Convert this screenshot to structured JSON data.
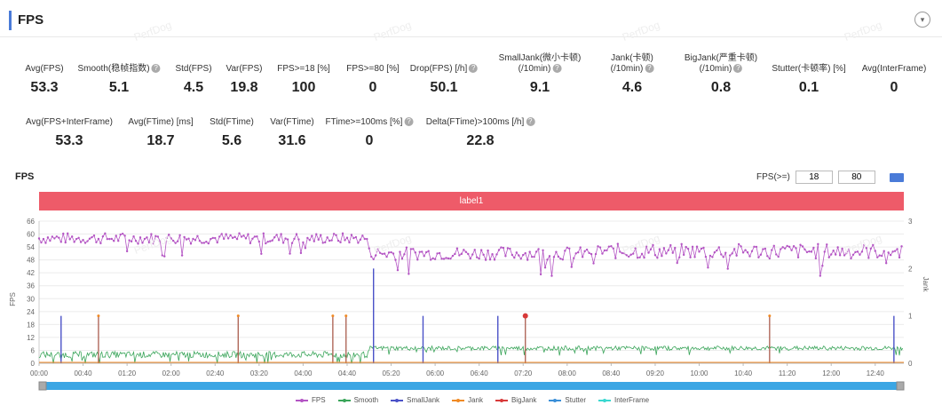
{
  "panel": {
    "title": "FPS",
    "collapse_icon": "▾"
  },
  "stats_row1": [
    {
      "label": "Avg(FPS)",
      "value": "53.3",
      "help": false
    },
    {
      "label": "Smooth(稳帧指数)",
      "value": "5.1",
      "help": true
    },
    {
      "label": "Std(FPS)",
      "value": "4.5",
      "help": false
    },
    {
      "label": "Var(FPS)",
      "value": "19.8",
      "help": false
    },
    {
      "label": "FPS>=18 [%]",
      "value": "100",
      "help": false
    },
    {
      "label": "FPS>=80 [%]",
      "value": "0",
      "help": false
    },
    {
      "label": "Drop(FPS) [/h]",
      "value": "50.1",
      "help": true
    },
    {
      "label": "SmallJank(微小卡顿)\n(/10min)",
      "value": "9.1",
      "help": true
    },
    {
      "label": "Jank(卡顿)\n(/10min)",
      "value": "4.6",
      "help": true
    },
    {
      "label": "BigJank(严重卡顿)\n(/10min)",
      "value": "0.8",
      "help": true
    },
    {
      "label": "Stutter(卡顿率) [%]",
      "value": "0.1",
      "help": false
    },
    {
      "label": "Avg(InterFrame)",
      "value": "0",
      "help": false
    }
  ],
  "stats_row2": [
    {
      "label": "Avg(FPS+InterFrame)",
      "value": "53.3",
      "help": false
    },
    {
      "label": "Avg(FTime) [ms]",
      "value": "18.7",
      "help": false
    },
    {
      "label": "Std(FTime)",
      "value": "5.6",
      "help": false
    },
    {
      "label": "Var(FTime)",
      "value": "31.6",
      "help": false
    },
    {
      "label": "FTime>=100ms [%]",
      "value": "0",
      "help": true
    },
    {
      "label": "Delta(FTime)>100ms [/h]",
      "value": "22.8",
      "help": true
    }
  ],
  "chart_header": {
    "title": "FPS",
    "filter_label": "FPS(>=)",
    "filter_min": "18",
    "filter_max": "80"
  },
  "label_bar": "label1",
  "watermark": "PerfDog",
  "chart_data": {
    "type": "line",
    "ylabel_left": "FPS",
    "ylabel_right": "Jank",
    "yticks_left": [
      "0",
      "6",
      "12",
      "18",
      "24",
      "30",
      "36",
      "42",
      "48",
      "54",
      "60",
      "66"
    ],
    "yticks_right": [
      "0",
      "1",
      "2",
      "3"
    ],
    "ylim_left": [
      0,
      66
    ],
    "ylim_right": [
      0,
      3
    ],
    "xlim_seconds": [
      0,
      786
    ],
    "xticks": [
      "00:00",
      "00:40",
      "01:20",
      "02:00",
      "02:40",
      "03:20",
      "04:00",
      "04:40",
      "05:20",
      "06:00",
      "06:40",
      "07:20",
      "08:00",
      "08:40",
      "09:20",
      "10:00",
      "10:40",
      "11:20",
      "12:00",
      "12:40"
    ],
    "legend": [
      {
        "name": "FPS",
        "color": "#b455c4"
      },
      {
        "name": "Smooth",
        "color": "#3aa55a"
      },
      {
        "name": "SmallJank",
        "color": "#4b52c8"
      },
      {
        "name": "Jank",
        "color": "#f08a24"
      },
      {
        "name": "BigJank",
        "color": "#d83a3a"
      },
      {
        "name": "Stutter",
        "color": "#3a8fd8"
      },
      {
        "name": "InterFrame",
        "color": "#3ad8d0"
      }
    ],
    "fps_segments": [
      {
        "t0": 0,
        "t1": 300,
        "base": 58,
        "noise": 2.5
      },
      {
        "t0": 300,
        "t1": 500,
        "base": 51,
        "noise": 3
      },
      {
        "t0": 500,
        "t1": 786,
        "base": 52,
        "noise": 3.5
      }
    ],
    "smooth_segments": [
      {
        "t0": 0,
        "t1": 300,
        "base": 4,
        "noise": 1.5
      },
      {
        "t0": 300,
        "t1": 786,
        "base": 7,
        "noise": 1
      }
    ],
    "jank_events": [
      {
        "t": 20,
        "type": "SmallJank",
        "value": 1
      },
      {
        "t": 54,
        "type": "Jank",
        "value": 1
      },
      {
        "t": 181,
        "type": "Jank",
        "value": 1
      },
      {
        "t": 267,
        "type": "Jank",
        "value": 1
      },
      {
        "t": 279,
        "type": "Jank",
        "value": 1
      },
      {
        "t": 304,
        "type": "SmallJank",
        "value": 2
      },
      {
        "t": 349,
        "type": "SmallJank",
        "value": 1
      },
      {
        "t": 417,
        "type": "SmallJank",
        "value": 1
      },
      {
        "t": 442,
        "type": "BigJank",
        "value": 1
      },
      {
        "t": 664,
        "type": "Jank",
        "value": 1
      },
      {
        "t": 777,
        "type": "SmallJank",
        "value": 1
      }
    ]
  }
}
